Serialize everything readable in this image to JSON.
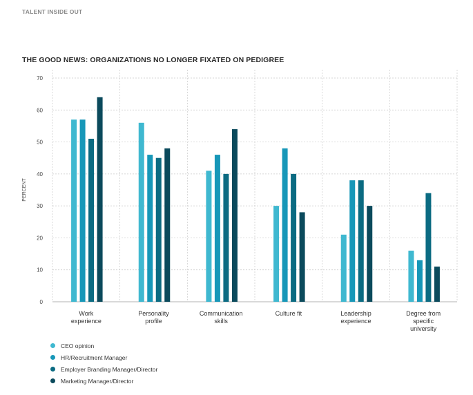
{
  "page": {
    "header": "TALENT INSIDE OUT"
  },
  "chart_data": {
    "type": "bar",
    "title": "THE GOOD NEWS: ORGANIZATIONS NO LONGER FIXATED ON PEDIGREE",
    "ylabel": "PERCENT",
    "xlabel": "",
    "ylim": [
      0,
      70
    ],
    "yticks": [
      0,
      10,
      20,
      30,
      40,
      50,
      60,
      70
    ],
    "grid": true,
    "legend_position": "bottom-left",
    "categories": [
      [
        "Work",
        "experience"
      ],
      [
        "Personality",
        "profile"
      ],
      [
        "Communication",
        "skills"
      ],
      [
        "Culture fit"
      ],
      [
        "Leadership",
        "experience"
      ],
      [
        "Degree from",
        "specific",
        "university"
      ]
    ],
    "series": [
      {
        "name": "CEO opinion",
        "color": "#3fb8d0",
        "values": [
          57,
          56,
          41,
          30,
          21,
          16
        ]
      },
      {
        "name": "HR/Recruitment Manager",
        "color": "#1797b8",
        "values": [
          57,
          46,
          46,
          48,
          38,
          13
        ]
      },
      {
        "name": "Employer Branding Manager/Director",
        "color": "#0b6b82",
        "values": [
          51,
          45,
          40,
          40,
          38,
          34
        ]
      },
      {
        "name": "Marketing Manager/Director",
        "color": "#0b4a5c",
        "values": [
          64,
          48,
          54,
          28,
          30,
          11
        ]
      }
    ]
  }
}
